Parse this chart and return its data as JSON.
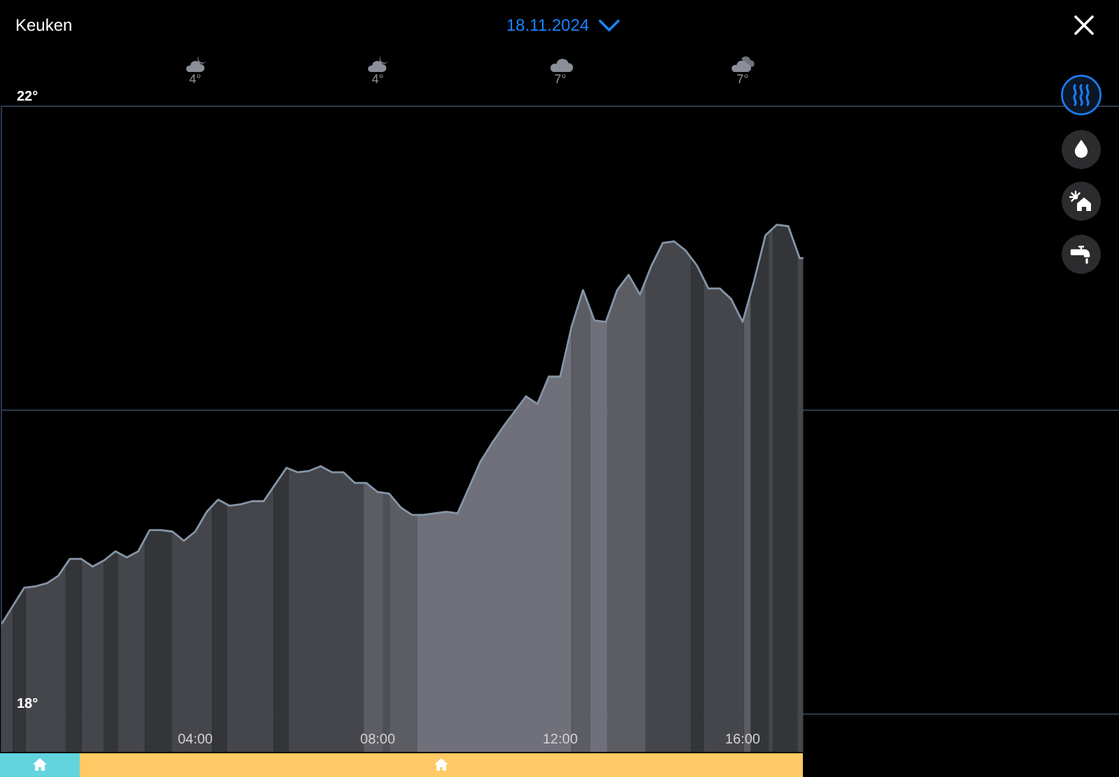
{
  "chart_data": {
    "type": "area",
    "title": "Keuken",
    "subtitle": "18.11.2024",
    "x": [
      -0.25,
      0,
      0.25,
      0.5,
      0.75,
      1,
      1.25,
      1.5,
      1.75,
      2,
      2.25,
      2.5,
      2.75,
      3,
      3.25,
      3.5,
      3.75,
      4,
      4.25,
      4.5,
      4.75,
      5,
      5.25,
      5.5,
      5.75,
      6,
      6.25,
      6.5,
      6.75,
      7,
      7.25,
      7.5,
      7.75,
      8,
      8.25,
      8.5,
      8.75,
      9,
      9.25,
      9.5,
      9.75,
      10,
      10.25,
      10.5,
      10.75,
      11,
      11.25,
      11.5,
      11.75,
      12,
      12.25,
      12.5,
      12.75,
      13,
      13.25,
      13.5,
      13.75,
      14,
      14.25,
      14.5,
      14.75,
      15,
      15.25,
      15.5,
      15.75,
      16,
      16.25,
      16.5,
      16.75,
      17,
      17.25,
      17.33
    ],
    "series": [
      {
        "color": "#8595a8",
        "values": [
          18.59,
          18.71,
          18.83,
          18.84,
          18.86,
          18.91,
          19.02,
          19.02,
          18.97,
          19.01,
          19.07,
          19.03,
          19.07,
          19.21,
          19.21,
          19.2,
          19.14,
          19.2,
          19.33,
          19.41,
          19.37,
          19.38,
          19.4,
          19.4,
          19.51,
          19.62,
          19.59,
          19.6,
          19.63,
          19.59,
          19.59,
          19.52,
          19.52,
          19.46,
          19.45,
          19.36,
          19.31,
          19.31,
          19.32,
          19.33,
          19.32,
          19.49,
          19.66,
          19.78,
          19.89,
          19.99,
          20.09,
          20.04,
          20.22,
          20.22,
          20.55,
          20.79,
          20.59,
          20.58,
          20.79,
          20.89,
          20.76,
          20.95,
          21.1,
          21.11,
          21.05,
          20.95,
          20.8,
          20.8,
          20.73,
          20.58,
          20.85,
          21.15,
          21.22,
          21.21,
          21.0,
          21.0
        ]
      }
    ],
    "xlim": [
      -0.25,
      24.25
    ],
    "xticks": [
      {
        "value": 4,
        "label": "04:00"
      },
      {
        "value": 8,
        "label": "08:00"
      },
      {
        "value": 12,
        "label": "12:00"
      },
      {
        "value": 16,
        "label": "16:00"
      }
    ],
    "ylim": [
      17.75,
      22
    ],
    "yticks": [
      {
        "value": 18,
        "label": "18°"
      },
      {
        "value": 20,
        "label": null
      },
      {
        "value": 22,
        "label": "22°"
      }
    ],
    "grid": "y",
    "bands": [
      {
        "axis": "x",
        "from": -0.25,
        "to": 0,
        "color": "#403f44"
      },
      {
        "axis": "x",
        "from": 0,
        "to": 0.28,
        "color": "#2d2d30"
      },
      {
        "axis": "x",
        "from": 0.28,
        "to": 1.16,
        "color": "#403f44"
      },
      {
        "axis": "x",
        "from": 1.16,
        "to": 1.51,
        "color": "#2d2d30"
      },
      {
        "axis": "x",
        "from": 1.51,
        "to": 2,
        "color": "#403f44"
      },
      {
        "axis": "x",
        "from": 2,
        "to": 2.3,
        "color": "#2d2d30"
      },
      {
        "axis": "x",
        "from": 2.3,
        "to": 2.9,
        "color": "#403f44"
      },
      {
        "axis": "x",
        "from": 2.9,
        "to": 3.48,
        "color": "#2d2d30"
      },
      {
        "axis": "x",
        "from": 3.48,
        "to": 4.37,
        "color": "#403f44"
      },
      {
        "axis": "x",
        "from": 4.37,
        "to": 4.69,
        "color": "#2d2d30"
      },
      {
        "axis": "x",
        "from": 4.69,
        "to": 5.72,
        "color": "#403f44"
      },
      {
        "axis": "x",
        "from": 5.72,
        "to": 6.05,
        "color": "#2d2d30"
      },
      {
        "axis": "x",
        "from": 6.05,
        "to": 7.69,
        "color": "#403f44"
      },
      {
        "axis": "x",
        "from": 7.69,
        "to": 8.12,
        "color": "#59585e"
      },
      {
        "axis": "x",
        "from": 8.12,
        "to": 8.26,
        "color": "#4b4a50"
      },
      {
        "axis": "x",
        "from": 8.26,
        "to": 8.86,
        "color": "#59585e"
      },
      {
        "axis": "x",
        "from": 8.86,
        "to": 12.25,
        "color": "#6e6d76"
      },
      {
        "axis": "x",
        "from": 12.25,
        "to": 12.66,
        "color": "#59585e"
      },
      {
        "axis": "x",
        "from": 12.66,
        "to": 13.04,
        "color": "#6e6d76"
      },
      {
        "axis": "x",
        "from": 13.04,
        "to": 13.87,
        "color": "#59585e"
      },
      {
        "axis": "x",
        "from": 13.87,
        "to": 14.87,
        "color": "#403f44"
      },
      {
        "axis": "x",
        "from": 14.87,
        "to": 15.14,
        "color": "#2d2d30"
      },
      {
        "axis": "x",
        "from": 15.14,
        "to": 16.03,
        "color": "#403f44"
      },
      {
        "axis": "x",
        "from": 16.03,
        "to": 16.18,
        "color": "#59585e"
      },
      {
        "axis": "x",
        "from": 16.18,
        "to": 16.57,
        "color": "#2d2d30"
      },
      {
        "axis": "x",
        "from": 16.57,
        "to": 16.67,
        "color": "#403f44"
      },
      {
        "axis": "x",
        "from": 16.67,
        "to": 17.2,
        "color": "#2d2d30"
      },
      {
        "axis": "x",
        "from": 17.2,
        "to": 17.33,
        "color": "#403f44"
      }
    ],
    "annotations": [
      "4°",
      "4°",
      "7°",
      "7°"
    ]
  }
}
